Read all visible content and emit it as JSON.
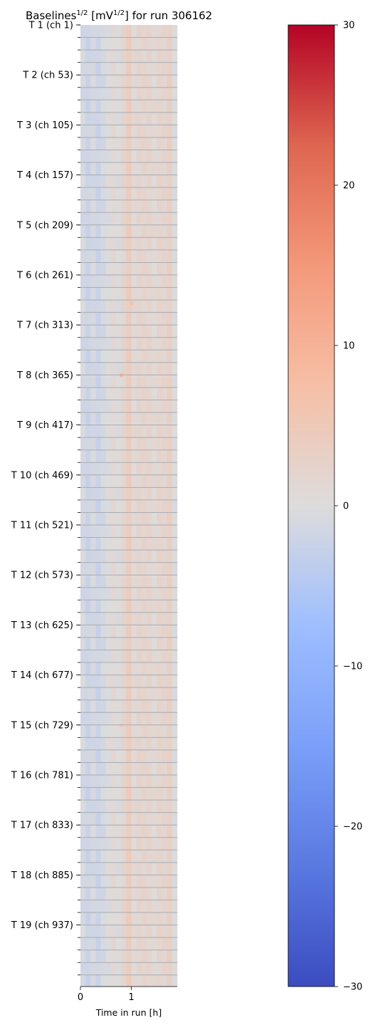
{
  "chart_data": {
    "type": "heatmap",
    "title": {
      "prefix": "Baselines",
      "exponent": "1/2",
      "unit_open": " [mV",
      "unit_exponent": "1/2",
      "suffix": "] for run 306162"
    },
    "xlabel": "Time in run [h]",
    "ylabel": "",
    "xlim": [
      0,
      1.9
    ],
    "x_ticks": [
      0,
      1
    ],
    "x_tick_labels": [
      "0",
      "1"
    ],
    "ylim": [
      0,
      1000
    ],
    "y_tick_labels": [
      "T 1 (ch 1)",
      "T 2 (ch 53)",
      "T 3 (ch 105)",
      "T 4 (ch 157)",
      "T 5 (ch 209)",
      "T 6 (ch 261)",
      "T 7 (ch 313)",
      "T 8 (ch 365)",
      "T 9 (ch 417)",
      "T 10 (ch 469)",
      "T 11 (ch 521)",
      "T 12 (ch 573)",
      "T 13 (ch 625)",
      "T 14 (ch 677)",
      "T 15 (ch 729)",
      "T 16 (ch 781)",
      "T 17 (ch 833)",
      "T 18 (ch 885)",
      "T 19 (ch 937)"
    ],
    "y_tick_channels": [
      1,
      53,
      105,
      157,
      209,
      261,
      313,
      365,
      417,
      469,
      521,
      573,
      625,
      677,
      729,
      781,
      833,
      885,
      937
    ],
    "minor_tick_spacing_channels": 13,
    "grid": "horizontal lines at minor ticks",
    "colormap": "coolwarm",
    "colorbar": {
      "min": -30,
      "max": 30,
      "ticks": [
        30,
        20,
        10,
        0,
        -10,
        -20,
        -30
      ],
      "tick_labels": [
        "30",
        "20",
        "10",
        "0",
        "−10",
        "−20",
        "−30"
      ]
    },
    "time_bins_h": [
      0,
      0.1,
      0.2,
      0.3,
      0.4,
      0.5,
      0.6,
      0.7,
      0.8,
      0.9,
      1.0,
      1.1,
      1.2,
      1.3,
      1.4,
      1.5,
      1.6,
      1.7,
      1.8
    ],
    "column_baseline_values": [
      -1,
      -2,
      -1,
      -2,
      -1,
      0,
      1,
      0,
      2,
      4,
      1,
      2,
      2,
      2,
      1,
      2,
      2,
      3,
      0
    ],
    "hot_spots": [
      {
        "channel": 290,
        "time_h": 1.0,
        "value": 7
      },
      {
        "channel": 365,
        "time_h": 0.8,
        "value": 9
      },
      {
        "channel": 729,
        "time_h": 0.8,
        "value": 6
      }
    ]
  }
}
